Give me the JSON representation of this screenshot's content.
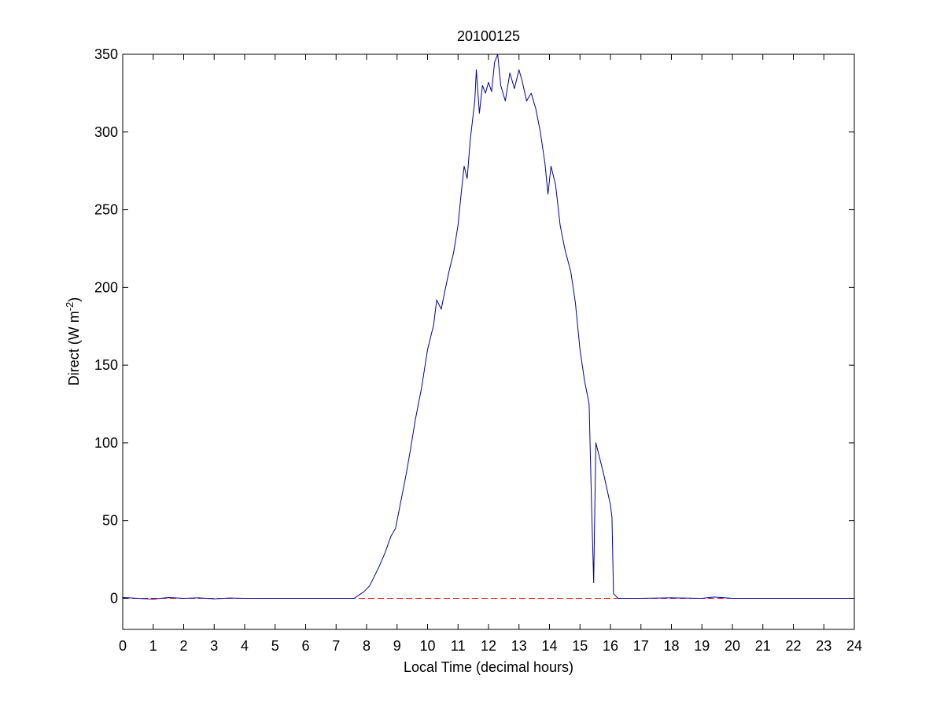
{
  "chart_data": {
    "type": "line",
    "title": "20100125",
    "xlabel": "Local Time (decimal hours)",
    "ylabel": {
      "text": "Direct (W m",
      "superscript": "-2",
      "suffix": ")"
    },
    "xlim": [
      0,
      24
    ],
    "ylim": [
      -20,
      350
    ],
    "xticks": [
      0,
      1,
      2,
      3,
      4,
      5,
      6,
      7,
      8,
      9,
      10,
      11,
      12,
      13,
      14,
      15,
      16,
      17,
      18,
      19,
      20,
      21,
      22,
      23,
      24
    ],
    "yticks": [
      0,
      50,
      100,
      150,
      200,
      250,
      300,
      350
    ],
    "grid": false,
    "legend": "none",
    "series": [
      {
        "color": "#0000a0",
        "style": "solid",
        "points": [
          [
            0.0,
            0.5
          ],
          [
            0.5,
            0.0
          ],
          [
            1.0,
            -0.5
          ],
          [
            1.5,
            0.5
          ],
          [
            2.0,
            0.0
          ],
          [
            2.5,
            0.3
          ],
          [
            3.0,
            -0.3
          ],
          [
            3.5,
            0.2
          ],
          [
            4.0,
            0.0
          ],
          [
            5.0,
            0.0
          ],
          [
            6.0,
            0.0
          ],
          [
            7.0,
            0.0
          ],
          [
            7.6,
            0.0
          ],
          [
            7.7,
            1.5
          ],
          [
            7.9,
            4
          ],
          [
            8.1,
            8
          ],
          [
            8.25,
            14
          ],
          [
            8.4,
            20
          ],
          [
            8.6,
            29
          ],
          [
            8.8,
            40
          ],
          [
            8.95,
            45
          ],
          [
            9.1,
            60
          ],
          [
            9.3,
            80
          ],
          [
            9.45,
            97
          ],
          [
            9.6,
            115
          ],
          [
            9.8,
            135
          ],
          [
            10.0,
            160
          ],
          [
            10.2,
            176
          ],
          [
            10.3,
            192
          ],
          [
            10.45,
            186
          ],
          [
            10.55,
            196
          ],
          [
            10.7,
            210
          ],
          [
            10.85,
            222
          ],
          [
            11.0,
            240
          ],
          [
            11.1,
            260
          ],
          [
            11.2,
            278
          ],
          [
            11.3,
            270
          ],
          [
            11.4,
            295
          ],
          [
            11.55,
            320
          ],
          [
            11.6,
            340
          ],
          [
            11.7,
            312
          ],
          [
            11.8,
            330
          ],
          [
            11.9,
            325
          ],
          [
            12.0,
            332
          ],
          [
            12.1,
            326
          ],
          [
            12.2,
            345
          ],
          [
            12.3,
            350
          ],
          [
            12.4,
            330
          ],
          [
            12.55,
            320
          ],
          [
            12.7,
            338
          ],
          [
            12.85,
            328
          ],
          [
            13.0,
            340
          ],
          [
            13.1,
            333
          ],
          [
            13.25,
            320
          ],
          [
            13.4,
            325
          ],
          [
            13.55,
            315
          ],
          [
            13.7,
            300
          ],
          [
            13.85,
            280
          ],
          [
            13.95,
            260
          ],
          [
            14.05,
            278
          ],
          [
            14.2,
            266
          ],
          [
            14.35,
            240
          ],
          [
            14.5,
            225
          ],
          [
            14.7,
            210
          ],
          [
            14.85,
            190
          ],
          [
            15.0,
            160
          ],
          [
            15.15,
            140
          ],
          [
            15.3,
            125
          ],
          [
            15.38,
            60
          ],
          [
            15.45,
            10
          ],
          [
            15.52,
            100
          ],
          [
            15.65,
            90
          ],
          [
            15.8,
            78
          ],
          [
            16.0,
            60
          ],
          [
            16.05,
            52
          ],
          [
            16.1,
            3
          ],
          [
            16.25,
            0
          ],
          [
            16.5,
            0
          ],
          [
            17.0,
            0
          ],
          [
            18.0,
            0.3
          ],
          [
            19.0,
            0.0
          ],
          [
            19.4,
            0.8
          ],
          [
            20.0,
            0
          ],
          [
            21.0,
            0
          ],
          [
            22.0,
            0
          ],
          [
            23.0,
            0
          ],
          [
            24.0,
            0
          ]
        ]
      },
      {
        "color": "#ff0000",
        "style": "dashed",
        "points": [
          [
            0,
            0
          ],
          [
            24,
            0
          ]
        ]
      }
    ]
  }
}
